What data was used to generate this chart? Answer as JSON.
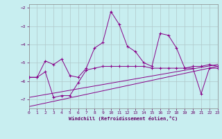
{
  "xlabel": "Windchill (Refroidissement éolien,°C)",
  "background_color": "#c8eef0",
  "grid_color": "#b0c8ca",
  "line_color": "#880088",
  "xlim": [
    0,
    23
  ],
  "ylim": [
    -7.5,
    -1.8
  ],
  "xticks": [
    0,
    1,
    2,
    3,
    4,
    5,
    6,
    7,
    8,
    9,
    10,
    11,
    12,
    13,
    14,
    15,
    16,
    17,
    18,
    19,
    20,
    21,
    22,
    23
  ],
  "yticks": [
    -7,
    -6,
    -5,
    -4,
    -3,
    -2
  ],
  "series1_x": [
    0,
    1,
    2,
    3,
    4,
    5,
    6,
    7,
    8,
    9,
    10,
    11,
    12,
    13,
    14,
    15,
    16,
    17,
    18,
    19,
    20,
    21,
    22,
    23
  ],
  "series1_y": [
    -5.8,
    -5.8,
    -4.9,
    -5.1,
    -4.8,
    -5.7,
    -5.8,
    -5.3,
    -4.2,
    -3.9,
    -2.2,
    -2.9,
    -4.1,
    -4.4,
    -5.0,
    -5.2,
    -3.4,
    -3.5,
    -4.2,
    -5.3,
    -5.2,
    -5.2,
    -5.1,
    -5.2
  ],
  "series2_x": [
    0,
    1,
    2,
    3,
    4,
    5,
    6,
    7,
    8,
    9,
    10,
    11,
    12,
    13,
    14,
    15,
    16,
    17,
    18,
    19,
    20,
    21,
    22,
    23
  ],
  "series2_y": [
    -5.8,
    -5.8,
    -5.5,
    -6.9,
    -6.8,
    -6.8,
    -6.1,
    -5.4,
    -5.3,
    -5.2,
    -5.2,
    -5.2,
    -5.2,
    -5.2,
    -5.2,
    -5.3,
    -5.3,
    -5.3,
    -5.3,
    -5.3,
    -5.3,
    -6.7,
    -5.3,
    -5.3
  ],
  "series3_x": [
    0,
    23
  ],
  "series3_y": [
    -7.4,
    -5.2
  ],
  "series4_x": [
    0,
    23
  ],
  "series4_y": [
    -6.9,
    -5.1
  ]
}
